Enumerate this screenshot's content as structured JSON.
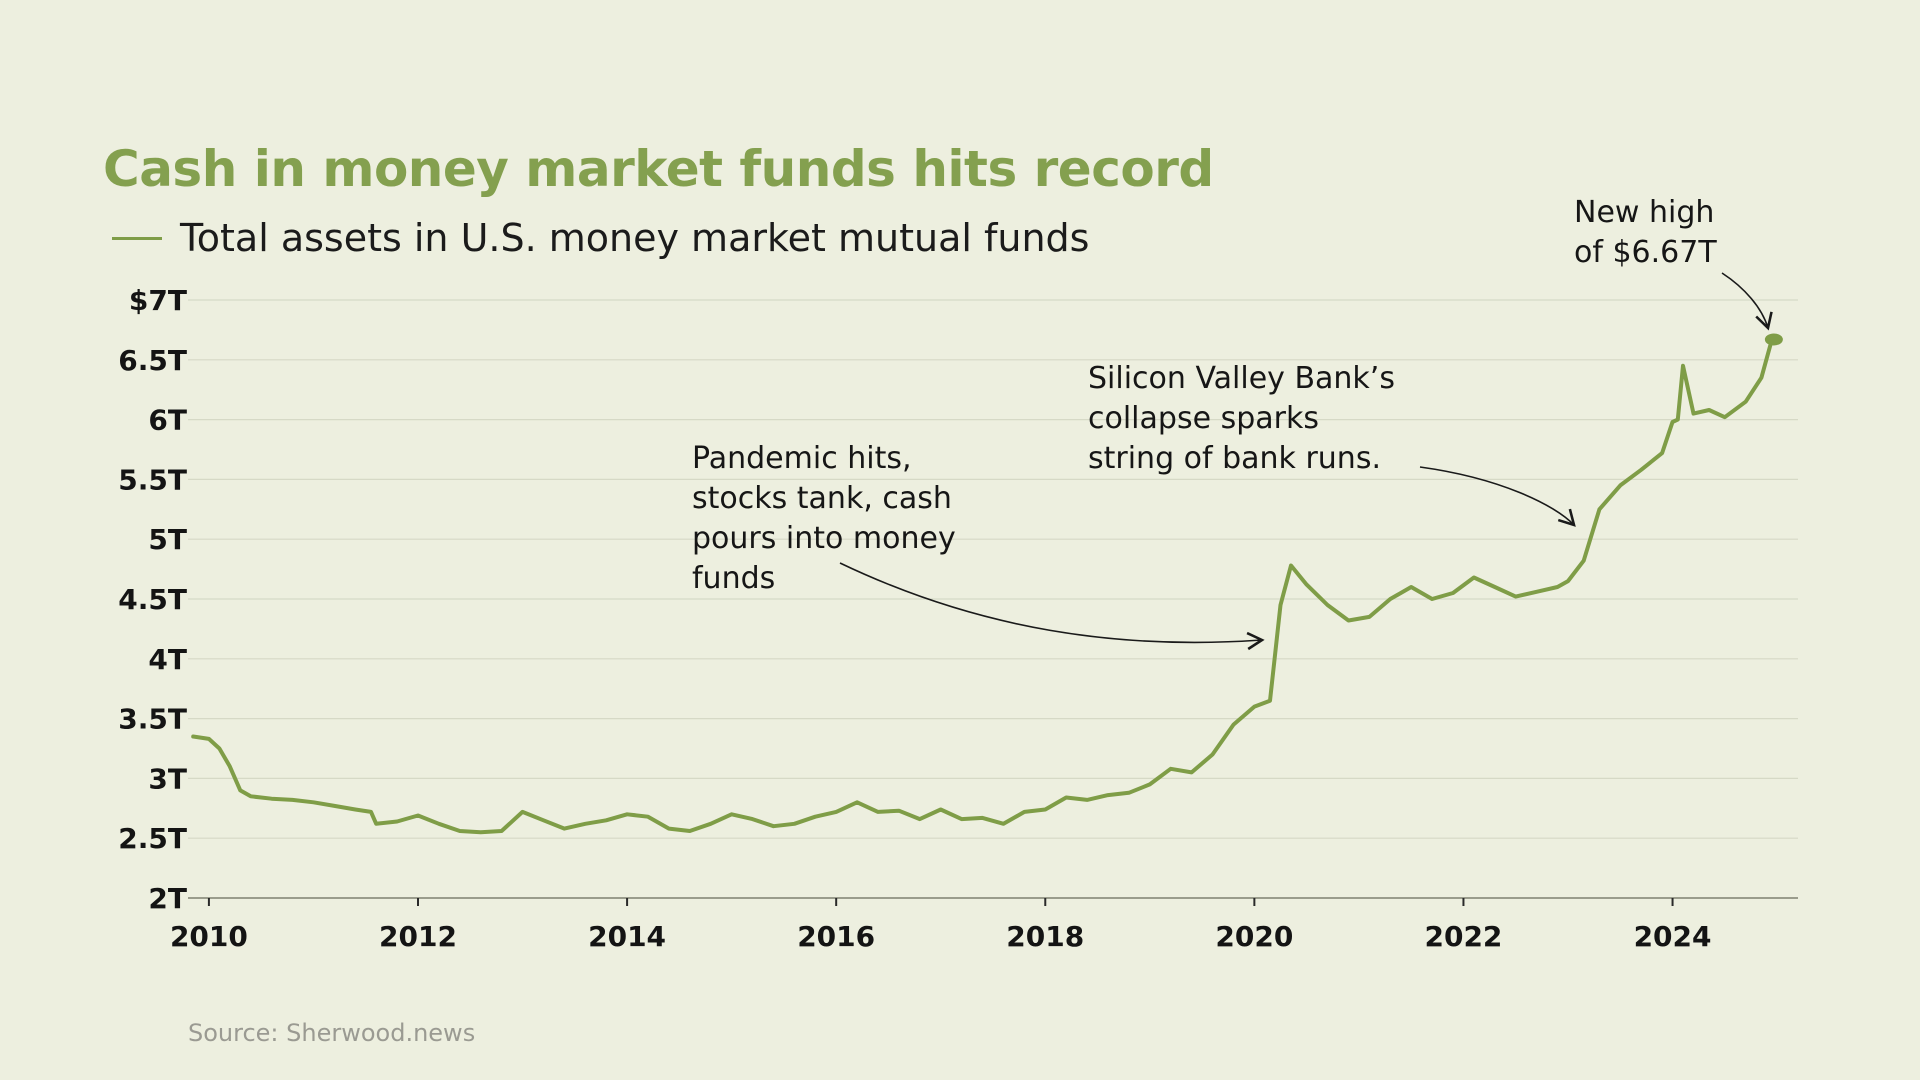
{
  "title": "Cash in money market funds hits record",
  "legend_label": "Total assets in U.S. money market mutual funds",
  "source": "Source: Sherwood.news",
  "colors": {
    "line": "#7f9d47",
    "title": "#84a04f",
    "background": "#edefdf",
    "grid": "#d6d9c6"
  },
  "chart_data": {
    "type": "line",
    "title": "Cash in money market funds hits record",
    "ylabel": "",
    "xlabel": "",
    "ylim": [
      2,
      7
    ],
    "xlim": [
      2009.8,
      2025.2
    ],
    "y_ticks": [
      {
        "value": 7,
        "label": "$7T"
      },
      {
        "value": 6.5,
        "label": "6.5T"
      },
      {
        "value": 6,
        "label": "6T"
      },
      {
        "value": 5.5,
        "label": "5.5T"
      },
      {
        "value": 5,
        "label": "5T"
      },
      {
        "value": 4.5,
        "label": "4.5T"
      },
      {
        "value": 4,
        "label": "4T"
      },
      {
        "value": 3.5,
        "label": "3.5T"
      },
      {
        "value": 3,
        "label": "3T"
      },
      {
        "value": 2.5,
        "label": "2.5T"
      },
      {
        "value": 2,
        "label": "2T"
      }
    ],
    "x_ticks": [
      {
        "value": 2010,
        "label": "2010"
      },
      {
        "value": 2012,
        "label": "2012"
      },
      {
        "value": 2014,
        "label": "2014"
      },
      {
        "value": 2016,
        "label": "2016"
      },
      {
        "value": 2018,
        "label": "2018"
      },
      {
        "value": 2020,
        "label": "2020"
      },
      {
        "value": 2022,
        "label": "2022"
      },
      {
        "value": 2024,
        "label": "2024"
      }
    ],
    "grid": true,
    "legend": "top-left",
    "series": [
      {
        "name": "Total assets in U.S. money market mutual funds",
        "x": [
          2009.85,
          2010.0,
          2010.1,
          2010.2,
          2010.3,
          2010.4,
          2010.6,
          2010.8,
          2011.0,
          2011.2,
          2011.4,
          2011.55,
          2011.6,
          2011.8,
          2012.0,
          2012.2,
          2012.4,
          2012.6,
          2012.8,
          2013.0,
          2013.2,
          2013.4,
          2013.6,
          2013.8,
          2014.0,
          2014.2,
          2014.4,
          2014.6,
          2014.8,
          2015.0,
          2015.2,
          2015.4,
          2015.6,
          2015.8,
          2016.0,
          2016.2,
          2016.4,
          2016.6,
          2016.8,
          2017.0,
          2017.2,
          2017.4,
          2017.6,
          2017.8,
          2018.0,
          2018.2,
          2018.4,
          2018.6,
          2018.8,
          2019.0,
          2019.2,
          2019.4,
          2019.6,
          2019.8,
          2020.0,
          2020.15,
          2020.25,
          2020.35,
          2020.5,
          2020.7,
          2020.9,
          2021.1,
          2021.3,
          2021.5,
          2021.7,
          2021.9,
          2022.1,
          2022.3,
          2022.5,
          2022.7,
          2022.9,
          2023.0,
          2023.15,
          2023.3,
          2023.5,
          2023.7,
          2023.9,
          2024.0,
          2024.05,
          2024.1,
          2024.2,
          2024.35,
          2024.5,
          2024.7,
          2024.85,
          2024.95
        ],
        "values": [
          3.35,
          3.33,
          3.25,
          3.1,
          2.9,
          2.85,
          2.83,
          2.82,
          2.8,
          2.77,
          2.74,
          2.72,
          2.62,
          2.64,
          2.69,
          2.62,
          2.56,
          2.55,
          2.56,
          2.72,
          2.65,
          2.58,
          2.62,
          2.65,
          2.7,
          2.68,
          2.58,
          2.56,
          2.62,
          2.7,
          2.66,
          2.6,
          2.62,
          2.68,
          2.72,
          2.8,
          2.72,
          2.73,
          2.66,
          2.74,
          2.66,
          2.67,
          2.62,
          2.72,
          2.74,
          2.84,
          2.82,
          2.86,
          2.88,
          2.95,
          3.08,
          3.05,
          3.2,
          3.45,
          3.6,
          3.65,
          4.45,
          4.78,
          4.62,
          4.45,
          4.32,
          4.35,
          4.5,
          4.6,
          4.5,
          4.55,
          4.68,
          4.6,
          4.52,
          4.56,
          4.6,
          4.65,
          4.82,
          5.25,
          5.45,
          5.58,
          5.72,
          5.98,
          6.0,
          6.45,
          6.05,
          6.08,
          6.02,
          6.15,
          6.35,
          6.67
        ]
      }
    ],
    "annotations": [
      {
        "lines": [
          "Pandemic hits,",
          "stocks tank, cash",
          "pours into money",
          "funds"
        ],
        "target_x": 2020.0,
        "target_y": 4.17
      },
      {
        "lines": [
          "Silicon Valley Bank’s",
          "collapse sparks",
          "string of bank runs."
        ],
        "target_x": 2023.0,
        "target_y": 5.08
      },
      {
        "lines": [
          "New high",
          "of $6.67T"
        ],
        "target_x": 2024.9,
        "target_y": 6.7
      }
    ]
  }
}
